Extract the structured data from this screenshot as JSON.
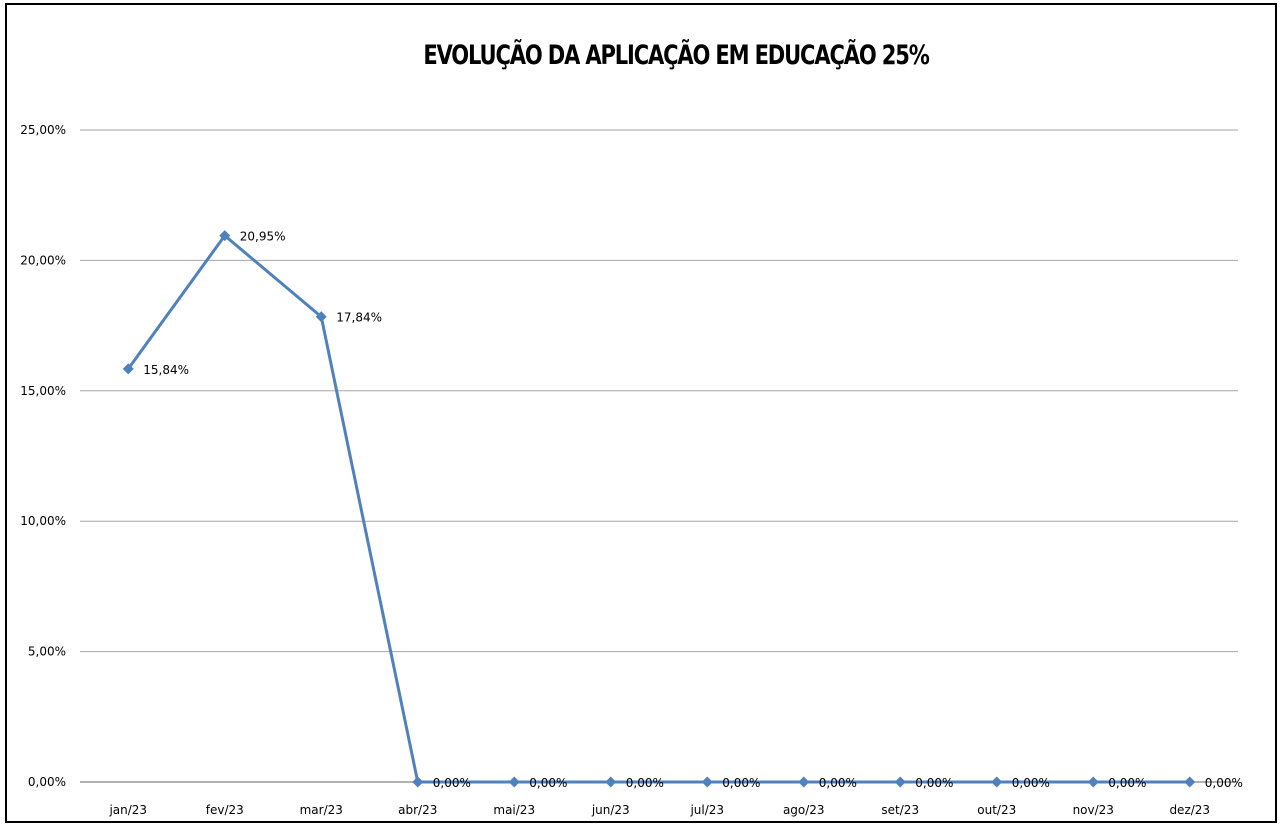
{
  "chart_data": {
    "type": "line",
    "title": "EVOLUÇÃO DA  APLICAÇÃO EM EDUCAÇÃO 25%",
    "xlabel": "",
    "ylabel": "",
    "categories": [
      "jan/23",
      "fev/23",
      "mar/23",
      "abr/23",
      "mai/23",
      "jun/23",
      "jul/23",
      "ago/23",
      "set/23",
      "out/23",
      "nov/23",
      "dez/23"
    ],
    "series": [
      {
        "values": [
          15.84,
          20.95,
          17.84,
          0,
          0,
          0,
          0,
          0,
          0,
          0,
          0,
          0
        ],
        "data_labels": [
          "15,84%",
          "20,95%",
          "17,84%",
          "0,00%",
          "0,00%",
          "0,00%",
          "0,00%",
          "0,00%",
          "0,00%",
          "0,00%",
          "0,00%",
          "0,00%"
        ],
        "color": "#4f81bd",
        "marker": "diamond"
      }
    ],
    "ylim": [
      0,
      25
    ],
    "y_ticks": [
      0,
      5,
      10,
      15,
      20,
      25
    ],
    "y_tick_labels": [
      "0,00%",
      "5,00%",
      "10,00%",
      "15,00%",
      "20,00%",
      "25,00%"
    ],
    "grid": true,
    "gridline_color": "#a6a6a6",
    "legend": "none"
  }
}
